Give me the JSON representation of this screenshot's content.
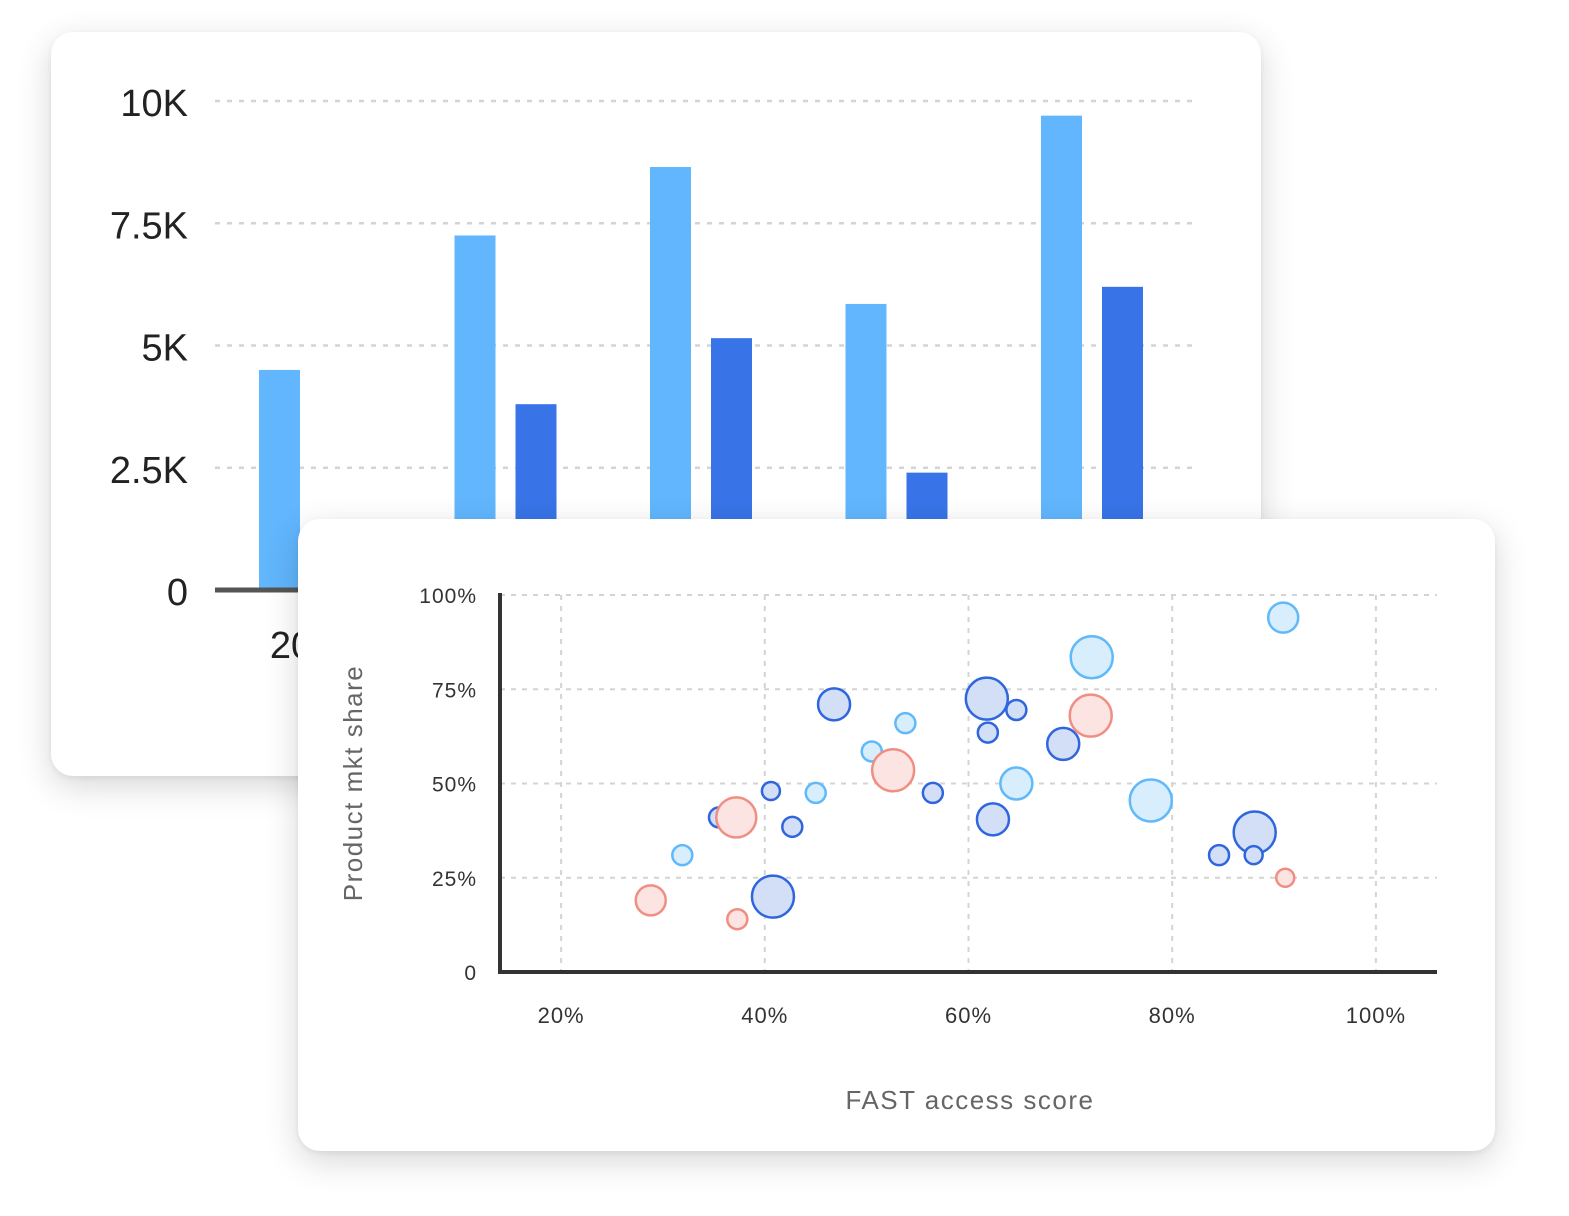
{
  "colors": {
    "series_light": "#61b6fd",
    "series_dark": "#3874e8",
    "bubble_light_fill": "#d8eefc",
    "bubble_light_stroke": "#5fb9fb",
    "bubble_blue_fill": "#d3dff6",
    "bubble_blue_stroke": "#2f66de",
    "bubble_red_fill": "#fbe4e2",
    "bubble_red_stroke": "#f08e84",
    "grid": "#d4d4d4",
    "axis": "#333333",
    "text": "#222222",
    "muted_text": "#666666"
  },
  "chart_data": [
    {
      "type": "bar",
      "categories": [
        "20",
        "",
        "",
        "",
        ""
      ],
      "series": [
        {
          "values": [
            4500,
            7250,
            8650,
            5850,
            9700
          ]
        },
        {
          "values": [
            0,
            3800,
            5150,
            2400,
            6200
          ]
        }
      ],
      "ylim": [
        0,
        10000
      ],
      "yticks": [
        0,
        2500,
        5000,
        7500,
        10000
      ],
      "ytick_labels": [
        "0",
        "2.5K",
        "5K",
        "7.5K",
        "10K"
      ],
      "grid": true
    },
    {
      "type": "scatter",
      "title": "",
      "xlabel": "FAST access score",
      "ylabel": "Product mkt share",
      "xlim": [
        14,
        106
      ],
      "ylim": [
        0,
        100
      ],
      "xticks": [
        20,
        40,
        60,
        80,
        100
      ],
      "xtick_labels": [
        "20%",
        "40%",
        "60%",
        "80%",
        "100%"
      ],
      "yticks": [
        0,
        25,
        50,
        75,
        100
      ],
      "ytick_labels": [
        "0",
        "25%",
        "50%",
        "75%",
        "100%"
      ],
      "grid": true,
      "points": [
        {
          "x": 28.8,
          "y": 19.0,
          "size": 15,
          "group": "red"
        },
        {
          "x": 31.9,
          "y": 31.0,
          "size": 10,
          "group": "light"
        },
        {
          "x": 35.5,
          "y": 41.0,
          "size": 10,
          "group": "blue"
        },
        {
          "x": 37.2,
          "y": 41.0,
          "size": 20,
          "group": "red"
        },
        {
          "x": 37.3,
          "y": 14.0,
          "size": 10,
          "group": "red"
        },
        {
          "x": 40.6,
          "y": 48.0,
          "size": 9,
          "group": "blue"
        },
        {
          "x": 40.8,
          "y": 20.0,
          "size": 21,
          "group": "blue"
        },
        {
          "x": 42.7,
          "y": 38.5,
          "size": 10,
          "group": "blue"
        },
        {
          "x": 45.0,
          "y": 47.5,
          "size": 10,
          "group": "light"
        },
        {
          "x": 46.8,
          "y": 71.0,
          "size": 16,
          "group": "blue"
        },
        {
          "x": 50.5,
          "y": 58.5,
          "size": 10,
          "group": "light"
        },
        {
          "x": 52.6,
          "y": 53.5,
          "size": 21,
          "group": "red"
        },
        {
          "x": 53.8,
          "y": 66.0,
          "size": 10,
          "group": "light"
        },
        {
          "x": 56.5,
          "y": 47.5,
          "size": 10,
          "group": "blue"
        },
        {
          "x": 61.8,
          "y": 72.5,
          "size": 21,
          "group": "blue"
        },
        {
          "x": 61.9,
          "y": 63.5,
          "size": 10,
          "group": "blue"
        },
        {
          "x": 62.4,
          "y": 40.5,
          "size": 16,
          "group": "blue"
        },
        {
          "x": 64.7,
          "y": 69.5,
          "size": 10,
          "group": "blue"
        },
        {
          "x": 64.7,
          "y": 50.0,
          "size": 16,
          "group": "light"
        },
        {
          "x": 69.3,
          "y": 60.5,
          "size": 16,
          "group": "blue"
        },
        {
          "x": 72.0,
          "y": 68.0,
          "size": 21,
          "group": "red"
        },
        {
          "x": 72.1,
          "y": 83.5,
          "size": 21,
          "group": "light"
        },
        {
          "x": 77.9,
          "y": 45.5,
          "size": 21,
          "group": "light"
        },
        {
          "x": 84.6,
          "y": 31.0,
          "size": 10,
          "group": "blue"
        },
        {
          "x": 88.1,
          "y": 37.0,
          "size": 21,
          "group": "blue"
        },
        {
          "x": 88.0,
          "y": 31.0,
          "size": 9,
          "group": "blue"
        },
        {
          "x": 90.9,
          "y": 94.0,
          "size": 15,
          "group": "light"
        },
        {
          "x": 91.1,
          "y": 25.0,
          "size": 9,
          "group": "red"
        }
      ]
    }
  ]
}
